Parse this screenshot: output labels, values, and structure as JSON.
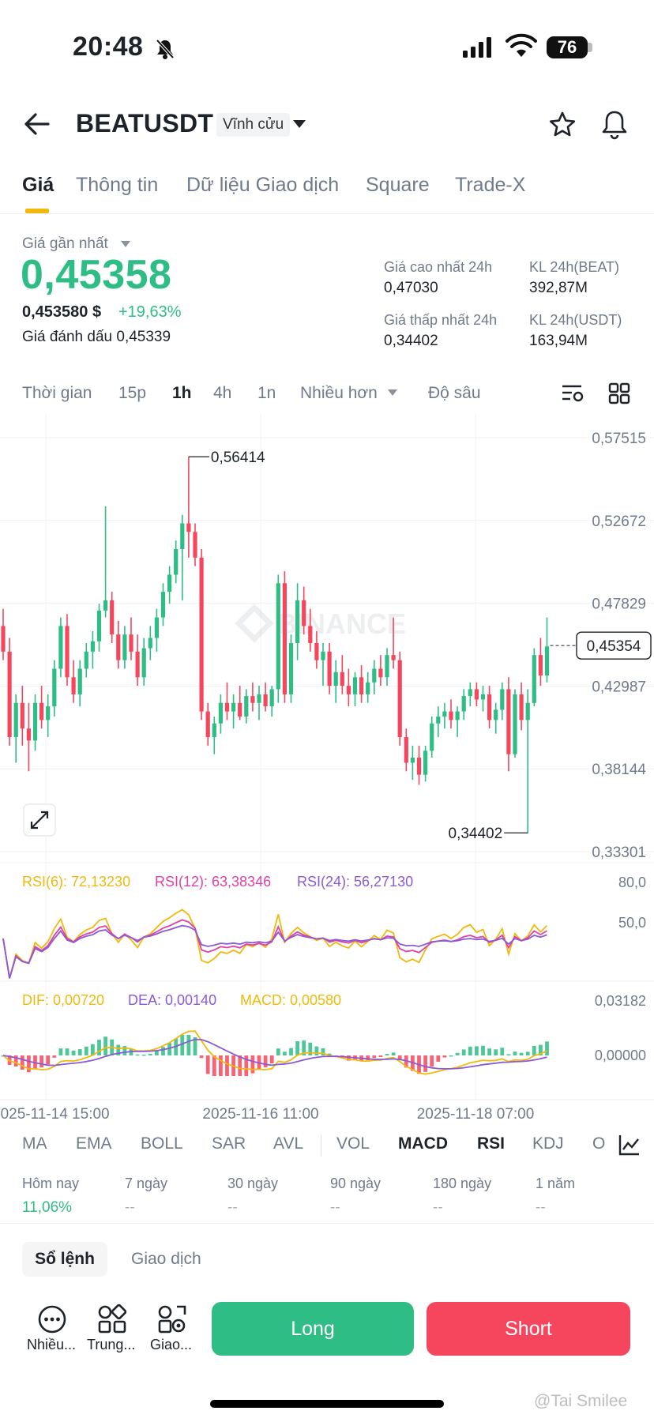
{
  "status_bar": {
    "time": "20:48",
    "battery": "76"
  },
  "header": {
    "pair": "BEATUSDT",
    "contract_type": "Vĩnh cửu"
  },
  "tabs": [
    {
      "label": "Giá"
    },
    {
      "label": "Thông tin"
    },
    {
      "label": "Dữ liệu Giao dịch"
    },
    {
      "label": "Square"
    },
    {
      "label": "Trade-X"
    }
  ],
  "price": {
    "last_label": "Giá gần nhất",
    "last": "0,45358",
    "usd": "0,453580 $",
    "change": "+19,63%",
    "mark_label": "Giá đánh dấu",
    "mark": "0,45339"
  },
  "stats": {
    "high_label": "Giá cao nhất 24h",
    "high": "0,47030",
    "low_label": "Giá thấp nhất 24h",
    "low": "0,34402",
    "vol_beat_label": "KL 24h(BEAT)",
    "vol_beat": "392,87M",
    "vol_usdt_label": "KL 24h(USDT)",
    "vol_usdt": "163,94M"
  },
  "intervals": [
    {
      "label": "Thời gian"
    },
    {
      "label": "15p"
    },
    {
      "label": "1h"
    },
    {
      "label": "4h"
    },
    {
      "label": "1n"
    },
    {
      "label": "Nhiều hơn"
    },
    {
      "label": "Độ sâu"
    }
  ],
  "chart_data": {
    "type": "candlestick",
    "watermark": "BINANCE",
    "y_ticks": [
      "0,57515",
      "0,52672",
      "0,47829",
      "0,42987",
      "0,38144",
      "0,33301"
    ],
    "ylim": [
      0.33301,
      0.57515
    ],
    "current_price": "0,45354",
    "high_marker": "0,56414",
    "low_marker": "0,34402",
    "x_ticks": [
      "2025-11-14 15:00",
      "2025-11-16 11:00",
      "2025-11-18 07:00"
    ],
    "rsi": {
      "rsi6_label": "RSI(6): 72,13230",
      "rsi12_label": "RSI(12): 63,38346",
      "rsi24_label": "RSI(24): 56,27130",
      "y_ticks": [
        "80,0",
        "50,0"
      ]
    },
    "macd": {
      "dif_label": "DIF: 0,00720",
      "dea_label": "DEA: 0,00140",
      "macd_label": "MACD: 0,00580",
      "y_ticks": [
        "0,03182",
        "0,00000"
      ]
    },
    "candles_ohlc": [
      [
        0.465,
        0.475,
        0.445,
        0.45
      ],
      [
        0.45,
        0.458,
        0.395,
        0.4
      ],
      [
        0.4,
        0.425,
        0.385,
        0.42
      ],
      [
        0.42,
        0.43,
        0.395,
        0.405
      ],
      [
        0.405,
        0.42,
        0.38,
        0.398
      ],
      [
        0.398,
        0.425,
        0.392,
        0.42
      ],
      [
        0.42,
        0.43,
        0.405,
        0.41
      ],
      [
        0.41,
        0.425,
        0.4,
        0.418
      ],
      [
        0.418,
        0.445,
        0.412,
        0.44
      ],
      [
        0.44,
        0.47,
        0.435,
        0.465
      ],
      [
        0.465,
        0.472,
        0.43,
        0.435
      ],
      [
        0.435,
        0.445,
        0.42,
        0.425
      ],
      [
        0.425,
        0.445,
        0.418,
        0.44
      ],
      [
        0.44,
        0.455,
        0.435,
        0.45
      ],
      [
        0.45,
        0.462,
        0.44,
        0.456
      ],
      [
        0.456,
        0.478,
        0.45,
        0.474
      ],
      [
        0.474,
        0.535,
        0.47,
        0.48
      ],
      [
        0.48,
        0.485,
        0.455,
        0.46
      ],
      [
        0.46,
        0.468,
        0.44,
        0.445
      ],
      [
        0.445,
        0.465,
        0.44,
        0.46
      ],
      [
        0.46,
        0.47,
        0.445,
        0.45
      ],
      [
        0.45,
        0.46,
        0.43,
        0.435
      ],
      [
        0.435,
        0.458,
        0.43,
        0.452
      ],
      [
        0.452,
        0.465,
        0.445,
        0.458
      ],
      [
        0.458,
        0.475,
        0.45,
        0.47
      ],
      [
        0.47,
        0.49,
        0.465,
        0.485
      ],
      [
        0.485,
        0.5,
        0.478,
        0.495
      ],
      [
        0.495,
        0.515,
        0.49,
        0.51
      ],
      [
        0.51,
        0.53,
        0.48,
        0.525
      ],
      [
        0.525,
        0.564,
        0.505,
        0.52
      ],
      [
        0.52,
        0.525,
        0.5,
        0.505
      ],
      [
        0.505,
        0.51,
        0.41,
        0.415
      ],
      [
        0.415,
        0.42,
        0.395,
        0.4
      ],
      [
        0.4,
        0.412,
        0.39,
        0.408
      ],
      [
        0.408,
        0.425,
        0.402,
        0.42
      ],
      [
        0.42,
        0.432,
        0.41,
        0.415
      ],
      [
        0.415,
        0.425,
        0.405,
        0.42
      ],
      [
        0.42,
        0.43,
        0.41,
        0.412
      ],
      [
        0.412,
        0.428,
        0.408,
        0.424
      ],
      [
        0.424,
        0.432,
        0.415,
        0.42
      ],
      [
        0.42,
        0.43,
        0.41,
        0.425
      ],
      [
        0.425,
        0.432,
        0.415,
        0.418
      ],
      [
        0.418,
        0.43,
        0.412,
        0.428
      ],
      [
        0.428,
        0.495,
        0.42,
        0.49
      ],
      [
        0.49,
        0.497,
        0.42,
        0.425
      ],
      [
        0.425,
        0.46,
        0.42,
        0.455
      ],
      [
        0.455,
        0.49,
        0.445,
        0.48
      ],
      [
        0.48,
        0.488,
        0.46,
        0.465
      ],
      [
        0.465,
        0.475,
        0.45,
        0.455
      ],
      [
        0.455,
        0.462,
        0.44,
        0.445
      ],
      [
        0.445,
        0.455,
        0.43,
        0.45
      ],
      [
        0.45,
        0.455,
        0.425,
        0.43
      ],
      [
        0.43,
        0.445,
        0.42,
        0.438
      ],
      [
        0.438,
        0.448,
        0.425,
        0.43
      ],
      [
        0.43,
        0.44,
        0.418,
        0.425
      ],
      [
        0.425,
        0.438,
        0.418,
        0.435
      ],
      [
        0.435,
        0.442,
        0.42,
        0.425
      ],
      [
        0.425,
        0.438,
        0.42,
        0.432
      ],
      [
        0.432,
        0.445,
        0.425,
        0.44
      ],
      [
        0.44,
        0.448,
        0.43,
        0.435
      ],
      [
        0.435,
        0.452,
        0.43,
        0.448
      ],
      [
        0.448,
        0.47,
        0.44,
        0.445
      ],
      [
        0.445,
        0.45,
        0.395,
        0.4
      ],
      [
        0.4,
        0.405,
        0.38,
        0.385
      ],
      [
        0.385,
        0.395,
        0.375,
        0.388
      ],
      [
        0.388,
        0.395,
        0.372,
        0.378
      ],
      [
        0.378,
        0.395,
        0.374,
        0.392
      ],
      [
        0.392,
        0.412,
        0.388,
        0.408
      ],
      [
        0.408,
        0.418,
        0.4,
        0.412
      ],
      [
        0.412,
        0.42,
        0.405,
        0.415
      ],
      [
        0.415,
        0.422,
        0.405,
        0.41
      ],
      [
        0.41,
        0.418,
        0.4,
        0.415
      ],
      [
        0.415,
        0.428,
        0.41,
        0.424
      ],
      [
        0.424,
        0.432,
        0.418,
        0.428
      ],
      [
        0.428,
        0.432,
        0.418,
        0.422
      ],
      [
        0.422,
        0.43,
        0.415,
        0.425
      ],
      [
        0.425,
        0.43,
        0.405,
        0.41
      ],
      [
        0.41,
        0.42,
        0.402,
        0.416
      ],
      [
        0.416,
        0.432,
        0.41,
        0.428
      ],
      [
        0.428,
        0.435,
        0.38,
        0.39
      ],
      [
        0.39,
        0.428,
        0.388,
        0.425
      ],
      [
        0.425,
        0.432,
        0.404,
        0.41
      ],
      [
        0.41,
        0.428,
        0.344,
        0.42
      ],
      [
        0.42,
        0.452,
        0.418,
        0.448
      ],
      [
        0.448,
        0.458,
        0.43,
        0.436
      ],
      [
        0.436,
        0.47,
        0.432,
        0.453
      ]
    ]
  },
  "indicator_tabs": [
    {
      "label": "MA"
    },
    {
      "label": "EMA"
    },
    {
      "label": "BOLL"
    },
    {
      "label": "SAR"
    },
    {
      "label": "AVL"
    },
    {
      "label": "VOL"
    },
    {
      "label": "MACD"
    },
    {
      "label": "RSI"
    },
    {
      "label": "KDJ"
    },
    {
      "label": "O"
    }
  ],
  "performance": [
    {
      "label": "Hôm nay",
      "value": "11,06%"
    },
    {
      "label": "7 ngày",
      "value": "--"
    },
    {
      "label": "30 ngày",
      "value": "--"
    },
    {
      "label": "90 ngày",
      "value": "--"
    },
    {
      "label": "180 ngày",
      "value": "--"
    },
    {
      "label": "1 năm",
      "value": "--"
    }
  ],
  "orderbook_tabs": {
    "orderbook": "Sổ lệnh",
    "trades": "Giao dịch"
  },
  "bottom_bar": {
    "more": "Nhiều...",
    "center": "Trung...",
    "trade": "Giao...",
    "long": "Long",
    "short": "Short"
  },
  "footer_watermark": "@Tai Smilee",
  "colors": {
    "up": "#2ebd85",
    "down": "#f6465d",
    "accent": "#f0b90b",
    "rsi6": "#f0b90b",
    "rsi12": "#e040a8",
    "rsi24": "#8c5ad3"
  }
}
